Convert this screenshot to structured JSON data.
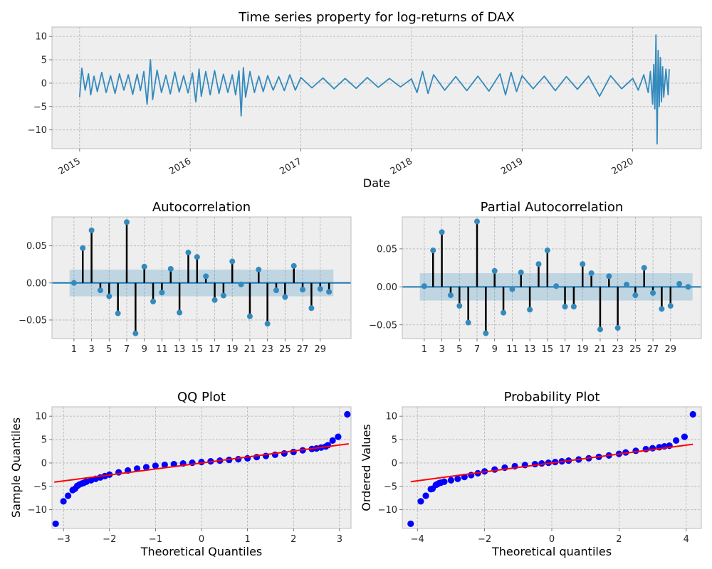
{
  "chart_data": [
    {
      "id": "timeseries",
      "type": "line",
      "title": "Time series property for log-returns of DAX",
      "xlabel": "Date",
      "ylabel": "",
      "xlim": [
        2014.75,
        2020.62
      ],
      "ylim": [
        -14,
        12
      ],
      "x_ticks": [
        2015,
        2016,
        2017,
        2018,
        2019,
        2020
      ],
      "x_tick_labels": [
        "2015",
        "2016",
        "2017",
        "2018",
        "2019",
        "2020"
      ],
      "y_ticks": [
        -10,
        -5,
        0,
        5,
        10
      ],
      "y_tick_labels": [
        "−10",
        "−5",
        "0",
        "5",
        "10"
      ],
      "grid": true,
      "series": [
        {
          "color": "#348abd",
          "x": [
            2015.0,
            2015.02,
            2015.05,
            2015.08,
            2015.1,
            2015.13,
            2015.16,
            2015.2,
            2015.24,
            2015.28,
            2015.32,
            2015.36,
            2015.4,
            2015.44,
            2015.48,
            2015.52,
            2015.55,
            2015.58,
            2015.61,
            2015.64,
            2015.66,
            2015.7,
            2015.74,
            2015.78,
            2015.82,
            2015.86,
            2015.9,
            2015.94,
            2015.98,
            2016.02,
            2016.05,
            2016.08,
            2016.1,
            2016.14,
            2016.18,
            2016.22,
            2016.26,
            2016.3,
            2016.34,
            2016.38,
            2016.41,
            2016.44,
            2016.46,
            2016.48,
            2016.5,
            2016.54,
            2016.58,
            2016.62,
            2016.66,
            2016.7,
            2016.75,
            2016.8,
            2016.85,
            2016.9,
            2016.95,
            2017.0,
            2017.1,
            2017.2,
            2017.3,
            2017.4,
            2017.5,
            2017.6,
            2017.7,
            2017.8,
            2017.9,
            2018.0,
            2018.05,
            2018.1,
            2018.15,
            2018.2,
            2018.3,
            2018.4,
            2018.5,
            2018.6,
            2018.7,
            2018.8,
            2018.85,
            2018.9,
            2018.95,
            2019.0,
            2019.1,
            2019.2,
            2019.3,
            2019.4,
            2019.5,
            2019.6,
            2019.7,
            2019.8,
            2019.9,
            2020.0,
            2020.05,
            2020.1,
            2020.14,
            2020.16,
            2020.18,
            2020.19,
            2020.2,
            2020.21,
            2020.22,
            2020.23,
            2020.24,
            2020.25,
            2020.26,
            2020.27,
            2020.28,
            2020.3,
            2020.32,
            2020.33
          ],
          "y": [
            -3.0,
            3.2,
            -1.5,
            2.0,
            -2.5,
            1.5,
            -1.8,
            2.3,
            -2.0,
            1.6,
            -2.2,
            2.0,
            -1.5,
            1.8,
            -2.4,
            1.9,
            -1.6,
            2.5,
            -4.5,
            5.0,
            -3.5,
            2.8,
            -2.0,
            1.7,
            -2.3,
            2.4,
            -1.9,
            1.6,
            -2.1,
            2.2,
            -4.0,
            3.0,
            -2.8,
            2.5,
            -2.5,
            2.7,
            -2.2,
            1.9,
            -2.0,
            1.8,
            -2.5,
            2.6,
            -7.0,
            3.3,
            -3.0,
            2.5,
            -2.0,
            1.5,
            -1.8,
            1.6,
            -1.5,
            1.4,
            -1.6,
            1.8,
            -1.5,
            1.2,
            -1.0,
            1.1,
            -1.2,
            1.0,
            -1.1,
            1.2,
            -0.9,
            1.0,
            -0.8,
            0.9,
            -2.0,
            2.5,
            -2.2,
            1.8,
            -1.5,
            1.4,
            -1.6,
            1.5,
            -1.7,
            2.0,
            -2.5,
            2.3,
            -1.8,
            1.6,
            -1.2,
            1.5,
            -1.6,
            1.4,
            -1.3,
            1.5,
            -2.8,
            1.6,
            -1.2,
            1.0,
            -1.5,
            1.8,
            -2.0,
            2.5,
            -4.5,
            4.0,
            -5.5,
            10.3,
            -13.0,
            7.0,
            -5.0,
            5.5,
            -4.0,
            3.5,
            -3.0,
            3.0,
            -2.5,
            3.0
          ]
        }
      ]
    },
    {
      "id": "acf",
      "type": "stem",
      "title": "Autocorrelation",
      "xlim": [
        -1.5,
        32.5
      ],
      "ylim": [
        -0.075,
        0.089
      ],
      "x_ticks": [
        1,
        3,
        5,
        7,
        9,
        11,
        13,
        15,
        17,
        19,
        21,
        23,
        25,
        27,
        29
      ],
      "x_tick_labels": [
        "1",
        "3",
        "5",
        "7",
        "9",
        "11",
        "13",
        "15",
        "17",
        "19",
        "21",
        "23",
        "25",
        "27",
        "29"
      ],
      "y_ticks": [
        -0.05,
        0,
        0.05
      ],
      "y_tick_labels": [
        "−0.05",
        "0.00",
        "0.05"
      ],
      "confidence_band": 0.018,
      "grid": true,
      "lags": [
        1,
        2,
        3,
        4,
        5,
        6,
        7,
        8,
        9,
        10,
        11,
        12,
        13,
        14,
        15,
        16,
        17,
        18,
        19,
        20,
        21,
        22,
        23,
        24,
        25,
        26,
        27,
        28,
        29,
        30
      ],
      "values": [
        0.0,
        0.047,
        0.071,
        -0.01,
        -0.018,
        -0.041,
        0.082,
        -0.068,
        0.022,
        -0.025,
        -0.013,
        0.019,
        -0.04,
        0.041,
        0.035,
        0.009,
        -0.023,
        -0.017,
        0.029,
        -0.002,
        -0.045,
        0.018,
        -0.055,
        -0.01,
        -0.019,
        0.023,
        -0.009,
        -0.034,
        -0.008,
        -0.012
      ]
    },
    {
      "id": "pacf",
      "type": "stem",
      "title": "Partial Autocorrelation",
      "xlim": [
        -1.5,
        32.5
      ],
      "ylim": [
        -0.068,
        0.092
      ],
      "x_ticks": [
        1,
        3,
        5,
        7,
        9,
        11,
        13,
        15,
        17,
        19,
        21,
        23,
        25,
        27,
        29
      ],
      "x_tick_labels": [
        "1",
        "3",
        "5",
        "7",
        "9",
        "11",
        "13",
        "15",
        "17",
        "19",
        "21",
        "23",
        "25",
        "27",
        "29"
      ],
      "y_ticks": [
        -0.05,
        0,
        0.05
      ],
      "y_tick_labels": [
        "−0.05",
        "0.00",
        "0.05"
      ],
      "confidence_band": 0.018,
      "grid": true,
      "lags": [
        1,
        2,
        3,
        4,
        5,
        6,
        7,
        8,
        9,
        10,
        11,
        12,
        13,
        14,
        15,
        16,
        17,
        18,
        19,
        20,
        21,
        22,
        23,
        24,
        25,
        26,
        27,
        28,
        29,
        30,
        31
      ],
      "values": [
        0.001,
        0.048,
        0.072,
        -0.011,
        -0.025,
        -0.047,
        0.086,
        -0.061,
        0.021,
        -0.034,
        -0.003,
        0.019,
        -0.03,
        0.03,
        0.048,
        0.001,
        -0.026,
        -0.026,
        0.03,
        0.018,
        -0.056,
        0.014,
        -0.054,
        0.003,
        -0.011,
        0.025,
        -0.008,
        -0.029,
        -0.025,
        0.004,
        0.0
      ]
    },
    {
      "id": "qq",
      "type": "scatter",
      "title": "QQ Plot",
      "xlabel": "Theoretical Quantiles",
      "ylabel": "Sample Quantiles",
      "xlim": [
        -3.25,
        3.25
      ],
      "ylim": [
        -14,
        12
      ],
      "x_ticks": [
        -3,
        -2,
        -1,
        0,
        1,
        2,
        3
      ],
      "x_tick_labels": [
        "−3",
        "−2",
        "−1",
        "0",
        "1",
        "2",
        "3"
      ],
      "y_ticks": [
        -10,
        -5,
        0,
        5,
        10
      ],
      "y_tick_labels": [
        "−10",
        "−5",
        "0",
        "5",
        "10"
      ],
      "grid": true,
      "line": {
        "x": [
          -3.2,
          3.2
        ],
        "y": [
          -4.1,
          4.1
        ]
      },
      "x": [
        -3.17,
        -3.0,
        -2.9,
        -2.8,
        -2.75,
        -2.7,
        -2.65,
        -2.6,
        -2.55,
        -2.5,
        -2.4,
        -2.3,
        -2.2,
        -2.1,
        -2.0,
        -1.8,
        -1.6,
        -1.4,
        -1.2,
        -1.0,
        -0.8,
        -0.6,
        -0.4,
        -0.2,
        0.0,
        0.2,
        0.4,
        0.6,
        0.8,
        1.0,
        1.2,
        1.4,
        1.6,
        1.8,
        2.0,
        2.2,
        2.4,
        2.5,
        2.6,
        2.7,
        2.75,
        2.85,
        2.97,
        3.17
      ],
      "y": [
        -13.0,
        -8.2,
        -7.0,
        -5.8,
        -5.5,
        -4.9,
        -4.6,
        -4.4,
        -4.2,
        -4.0,
        -3.7,
        -3.4,
        -3.1,
        -2.8,
        -2.5,
        -2.0,
        -1.6,
        -1.2,
        -0.9,
        -0.6,
        -0.4,
        -0.25,
        -0.1,
        0.05,
        0.2,
        0.35,
        0.5,
        0.65,
        0.8,
        1.0,
        1.25,
        1.5,
        1.75,
        2.05,
        2.35,
        2.7,
        3.0,
        3.1,
        3.3,
        3.5,
        3.8,
        4.8,
        5.6,
        10.4
      ]
    },
    {
      "id": "probplot",
      "type": "scatter",
      "title": "Probability Plot",
      "xlabel": "Theoretical quantiles",
      "ylabel": "Ordered Values",
      "xlim": [
        -4.45,
        4.45
      ],
      "ylim": [
        -14,
        12
      ],
      "x_ticks": [
        -4,
        -2,
        0,
        2,
        4
      ],
      "x_tick_labels": [
        "−4",
        "−2",
        "0",
        "2",
        "4"
      ],
      "y_ticks": [
        -10,
        -5,
        0,
        5,
        10
      ],
      "y_tick_labels": [
        "−10",
        "−5",
        "0",
        "5",
        "10"
      ],
      "grid": true,
      "line": {
        "x": [
          -4.2,
          4.2
        ],
        "y": [
          -4.0,
          4.0
        ]
      },
      "x": [
        -4.2,
        -3.9,
        -3.75,
        -3.6,
        -3.55,
        -3.45,
        -3.4,
        -3.35,
        -3.3,
        -3.2,
        -3.0,
        -2.8,
        -2.6,
        -2.4,
        -2.2,
        -2.0,
        -1.7,
        -1.4,
        -1.1,
        -0.8,
        -0.5,
        -0.3,
        -0.1,
        0.1,
        0.3,
        0.5,
        0.8,
        1.1,
        1.4,
        1.7,
        2.0,
        2.2,
        2.5,
        2.8,
        3.0,
        3.2,
        3.35,
        3.5,
        3.7,
        3.95,
        4.2
      ],
      "y": [
        -13.0,
        -8.2,
        -7.0,
        -5.6,
        -5.5,
        -4.7,
        -4.5,
        -4.3,
        -4.2,
        -4.0,
        -3.7,
        -3.4,
        -3.0,
        -2.6,
        -2.2,
        -1.8,
        -1.4,
        -1.0,
        -0.7,
        -0.45,
        -0.25,
        -0.1,
        0.05,
        0.2,
        0.35,
        0.5,
        0.75,
        1.0,
        1.3,
        1.6,
        1.95,
        2.25,
        2.6,
        2.95,
        3.15,
        3.35,
        3.55,
        3.7,
        4.8,
        5.6,
        10.4
      ]
    }
  ]
}
